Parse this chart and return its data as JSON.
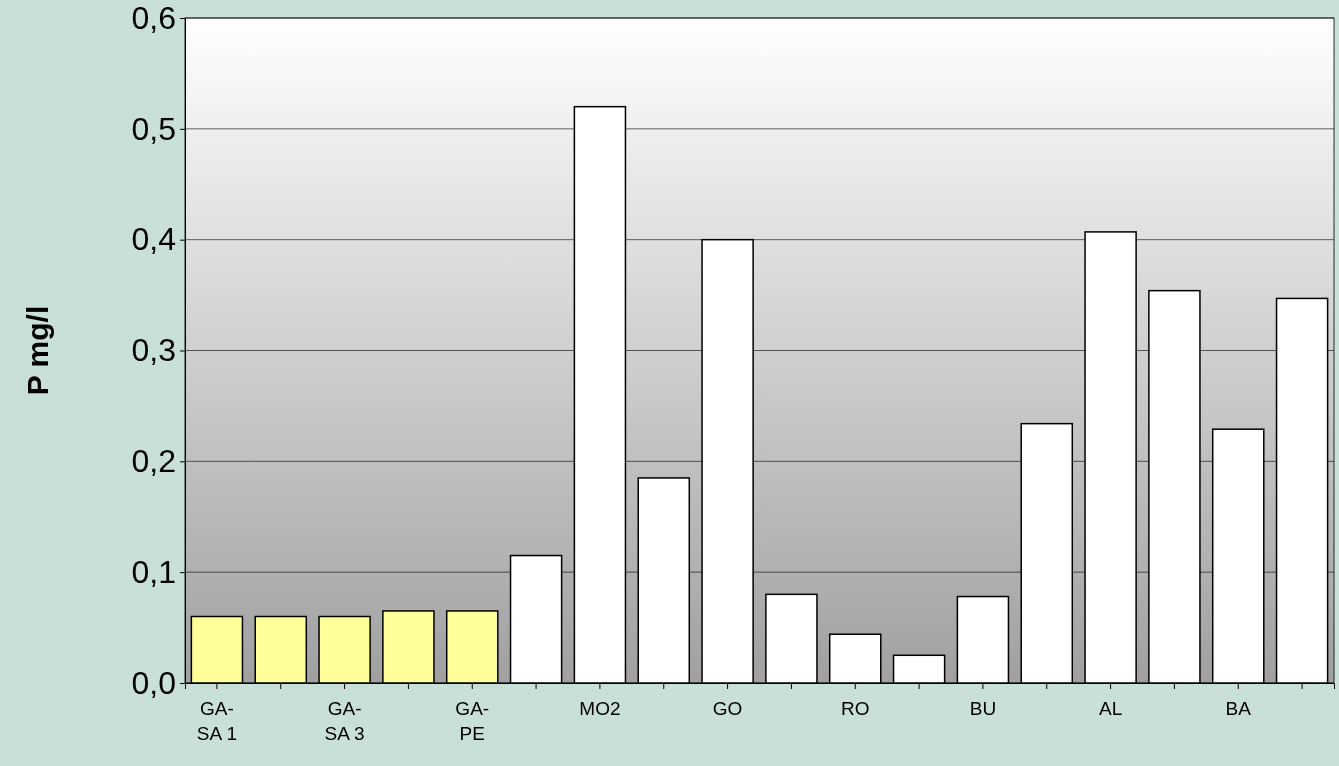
{
  "chart_data": {
    "type": "bar",
    "ylabel": "P mg/l",
    "categories": [
      "GA-SA 1",
      null,
      "GA-SA 3",
      null,
      "GA-PE",
      null,
      "MO2",
      null,
      "GO",
      null,
      "RO",
      null,
      "BU",
      null,
      "AL",
      null,
      "BA",
      null
    ],
    "values": [
      0.06,
      0.06,
      0.06,
      0.065,
      0.065,
      0.115,
      0.52,
      0.185,
      0.4,
      0.08,
      0.044,
      0.025,
      0.078,
      0.234,
      0.407,
      0.354,
      0.229,
      0.347
    ],
    "colors": [
      "#ffff99",
      "#ffff99",
      "#ffff99",
      "#ffff99",
      "#ffff99",
      "#ffffff",
      "#ffffff",
      "#ffffff",
      "#ffffff",
      "#ffffff",
      "#ffffff",
      "#ffffff",
      "#ffffff",
      "#ffffff",
      "#ffffff",
      "#ffffff",
      "#ffffff",
      "#ffffff"
    ],
    "ylim": [
      0,
      0.6
    ],
    "yticks": [
      {
        "value": 0,
        "label": "0,0"
      },
      {
        "value": 0.1,
        "label": "0,1"
      },
      {
        "value": 0.2,
        "label": "0,2"
      },
      {
        "value": 0.3,
        "label": "0,3"
      },
      {
        "value": 0.4,
        "label": "0,4"
      },
      {
        "value": 0.5,
        "label": "0,5"
      },
      {
        "value": 0.6,
        "label": "0,6"
      }
    ],
    "grid": "y"
  }
}
